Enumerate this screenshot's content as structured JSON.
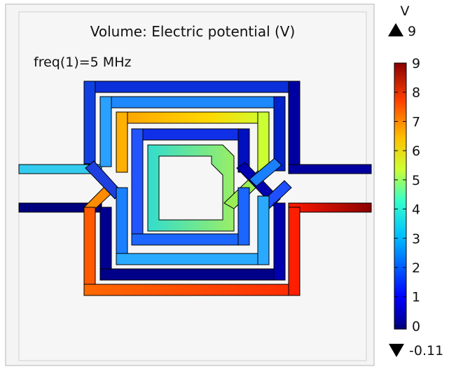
{
  "plot": {
    "title": "Volume: Electric potential (V)",
    "subtitle": "freq(1)=5 MHz"
  },
  "colorbar": {
    "unit": "V",
    "max_label": "9",
    "min_label": "-0.11",
    "ticks": [
      "9",
      "8",
      "7",
      "6",
      "5",
      "4",
      "3",
      "2",
      "1",
      "0"
    ],
    "max_symbol": "up-triangle-icon",
    "min_symbol": "down-triangle-icon",
    "colormap": [
      "#00007f",
      "#0000ff",
      "#00bfff",
      "#33ffcc",
      "#ccff33",
      "#ffbf00",
      "#ff4000",
      "#8b0000"
    ]
  },
  "traces": {
    "stroke_color": "#000000"
  }
}
